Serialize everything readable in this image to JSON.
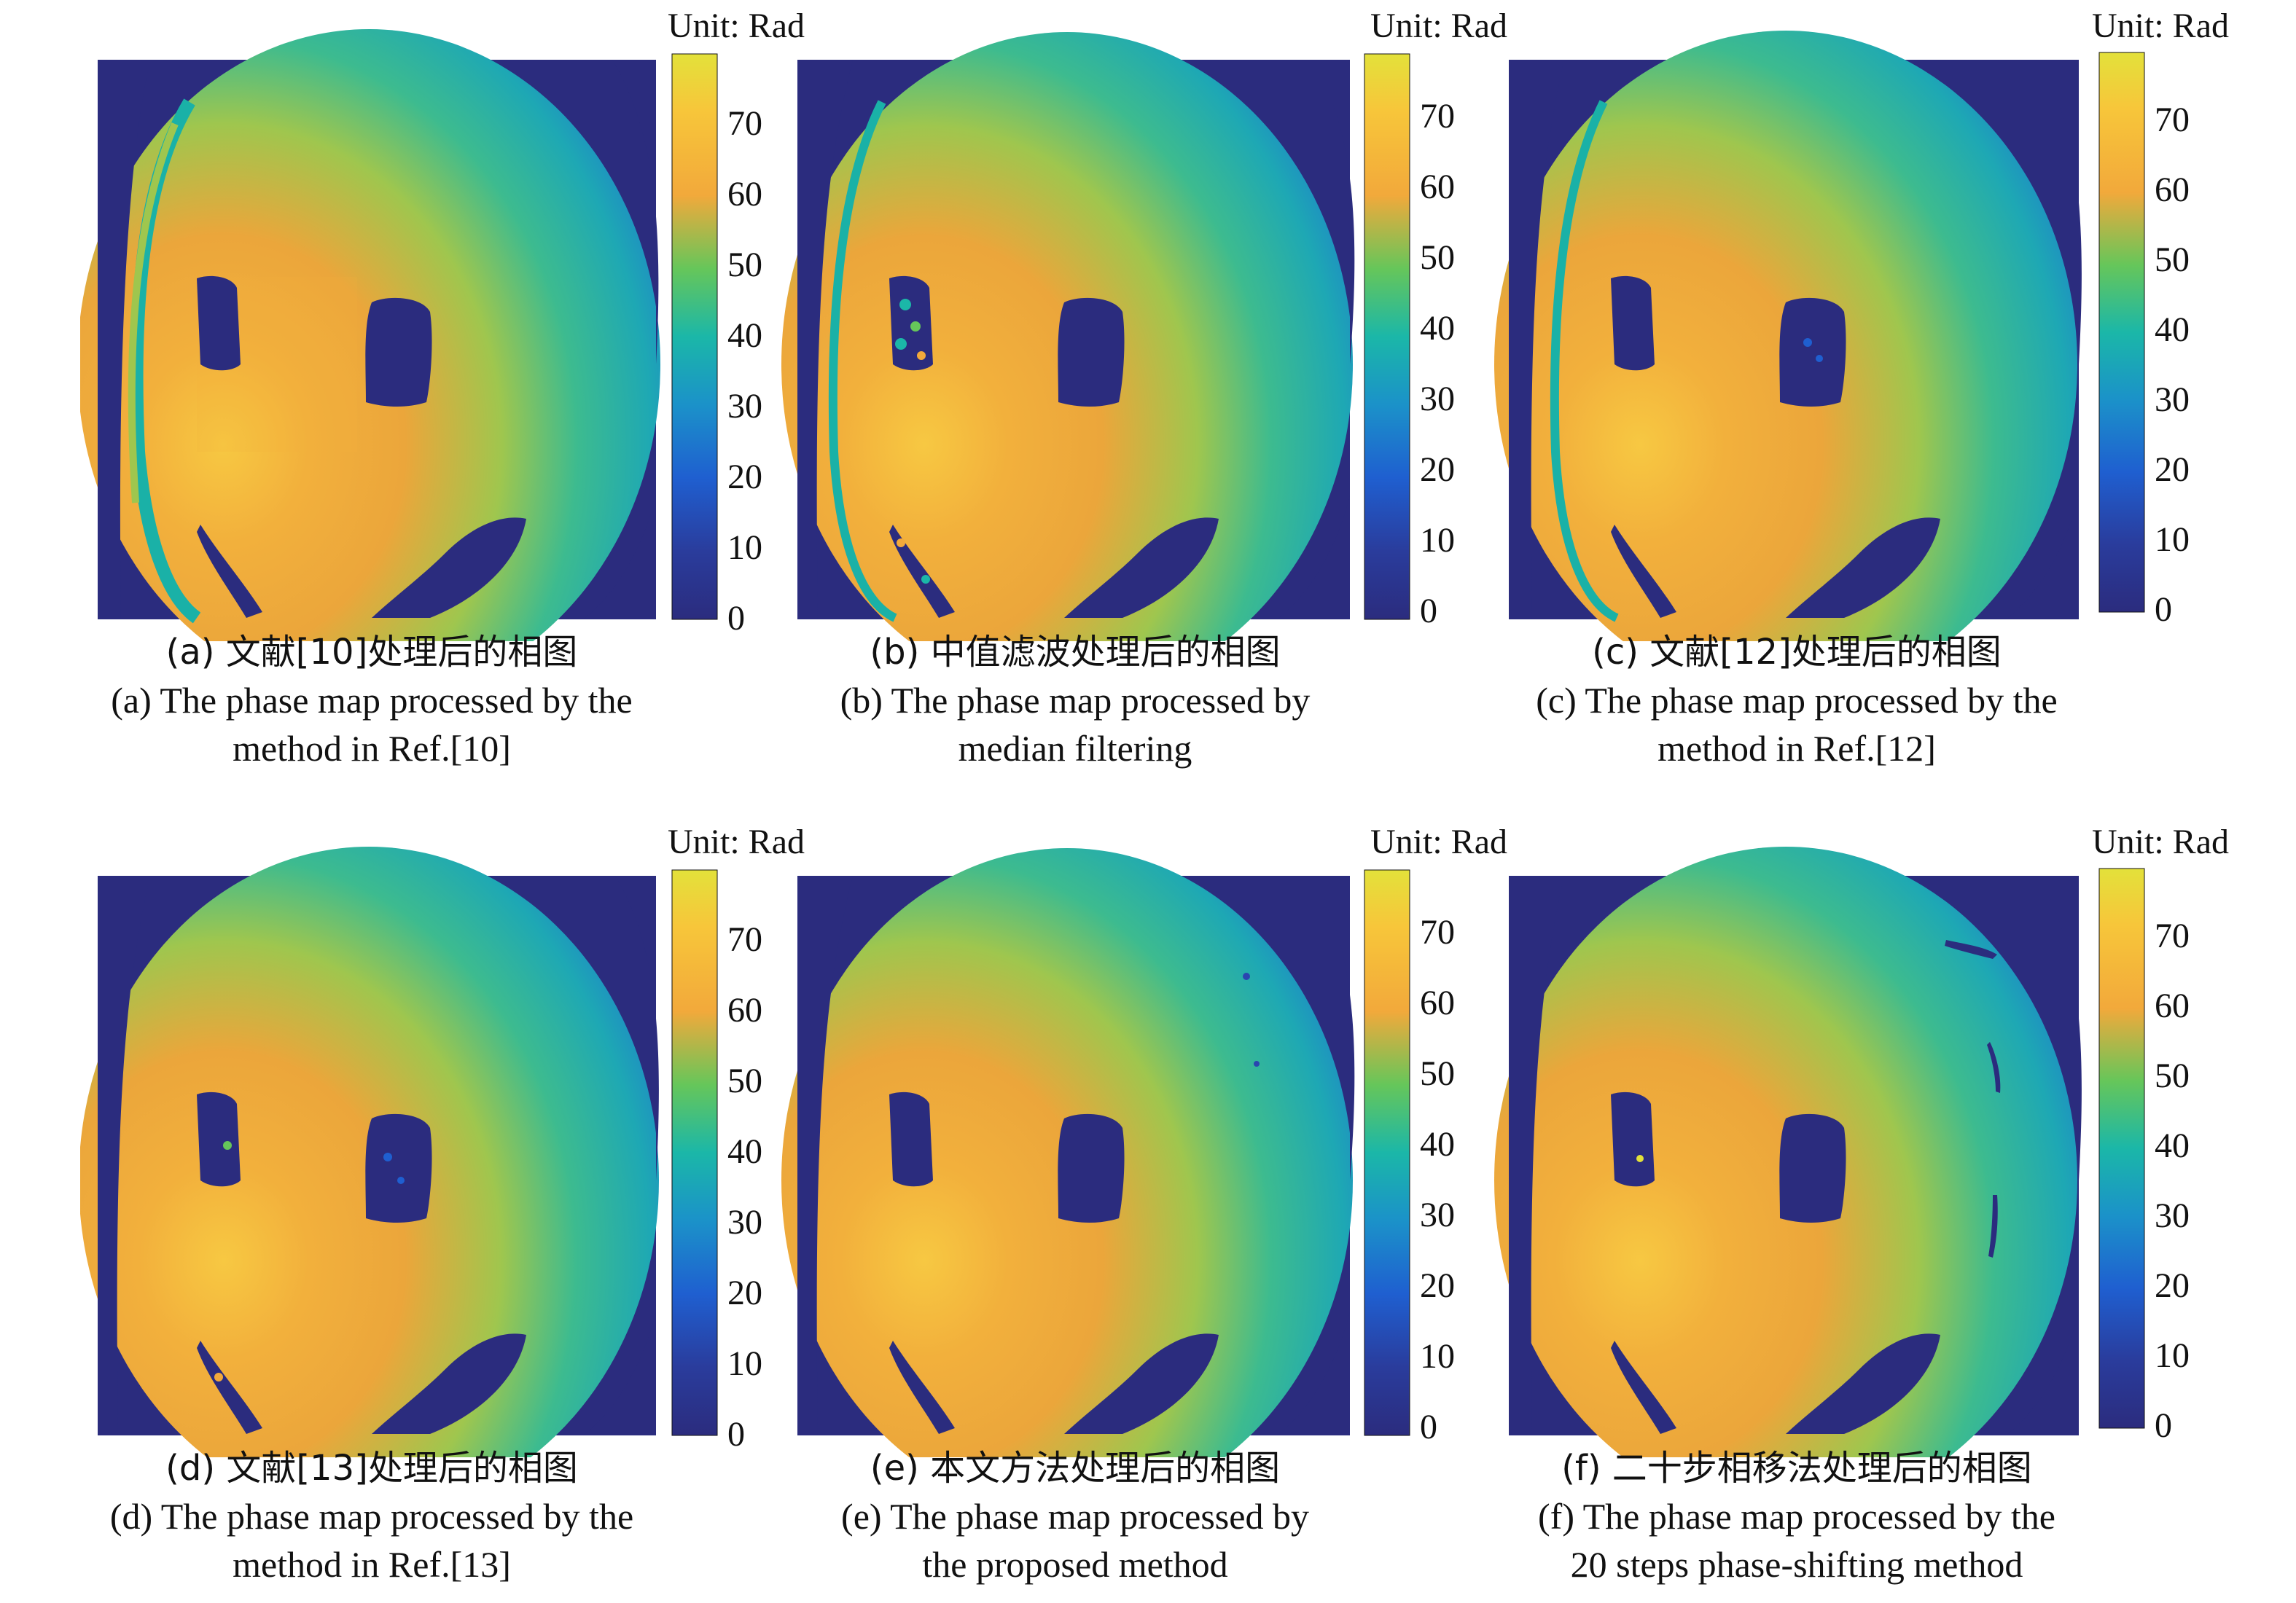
{
  "colorbar": {
    "unit": "Unit: Rad",
    "ticks": [
      "0",
      "10",
      "20",
      "30",
      "40",
      "50",
      "60",
      "70"
    ],
    "range": [
      0,
      80
    ],
    "colors": {
      "low": "#2b2c7e",
      "blue": "#1f5fd0",
      "mid_blue": "#1b92c9",
      "teal": "#1bb7a8",
      "green": "#66c65a",
      "orange": "#f2a93b",
      "yellow": "#e3e13a"
    }
  },
  "panels": [
    {
      "id": "a",
      "caption_cn": "(a) 文献[10]处理后的相图",
      "caption_en_1": "(a) The phase map processed by the",
      "caption_en_2": "method in Ref.[10]"
    },
    {
      "id": "b",
      "caption_cn": "(b) 中值滤波处理后的相图",
      "caption_en_1": "(b) The phase map processed by",
      "caption_en_2": "median filtering"
    },
    {
      "id": "c",
      "caption_cn": "(c) 文献[12]处理后的相图",
      "caption_en_1": "(c) The phase map processed by the",
      "caption_en_2": "method in Ref.[12]"
    },
    {
      "id": "d",
      "caption_cn": "(d) 文献[13]处理后的相图",
      "caption_en_1": "(d) The phase map processed by the",
      "caption_en_2": "method in Ref.[13]"
    },
    {
      "id": "e",
      "caption_cn": "(e) 本文方法处理后的相图",
      "caption_en_1": "(e) The phase map processed by",
      "caption_en_2": "the proposed method"
    },
    {
      "id": "f",
      "caption_cn": "(f) 二十步相移法处理后的相图",
      "caption_en_1": "(f) The phase map processed by the",
      "caption_en_2": "20 steps phase-shifting method"
    }
  ]
}
